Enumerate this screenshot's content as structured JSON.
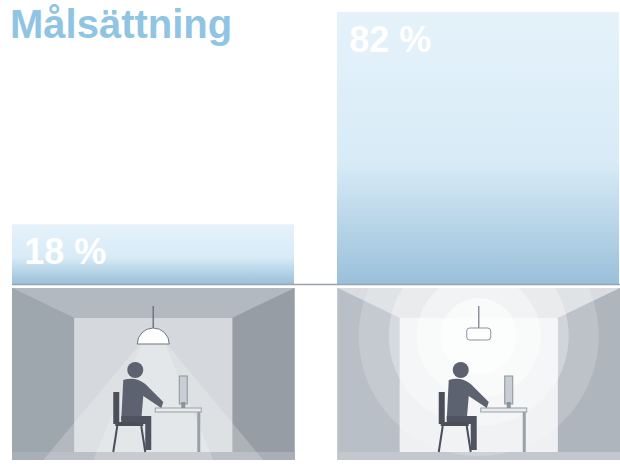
{
  "chart_data": {
    "type": "bar",
    "title": "Målsättning",
    "categories": [
      null,
      null
    ],
    "values": [
      18,
      82
    ],
    "value_labels": [
      "18 %",
      "82 %"
    ],
    "color": "#a8d2ee",
    "ylim": [
      0,
      82
    ],
    "data_labels": true,
    "tick_labels": false,
    "grid": false
  }
}
